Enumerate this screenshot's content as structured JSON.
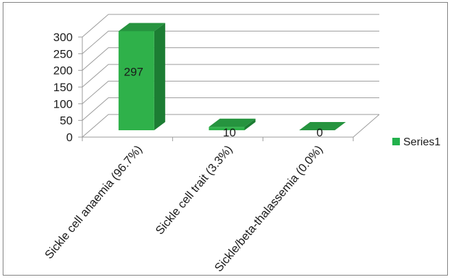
{
  "chart_data": {
    "type": "bar",
    "style": "3d-column",
    "categories": [
      "Sickle cell anaemia (96.7%)",
      "Sickle cell trait (3.3%)",
      "Sickle/beta-thalassemia (0.0%)"
    ],
    "series": [
      {
        "name": "Series1",
        "values": [
          297,
          10,
          0
        ],
        "color": "#22b14c"
      }
    ],
    "data_labels": [
      "297",
      "10",
      "0"
    ],
    "y_ticks": [
      0,
      50,
      100,
      150,
      200,
      250,
      300
    ],
    "ylim": [
      0,
      300
    ],
    "title": "",
    "xlabel": "",
    "ylabel": "",
    "grid": true,
    "legend_position": "right",
    "colors": {
      "bar_front": "#2fb14a",
      "bar_side": "#1c7d33",
      "bar_top": "#26943f",
      "grid": "#9a9a9a",
      "frame": "#7f7f7f"
    }
  }
}
